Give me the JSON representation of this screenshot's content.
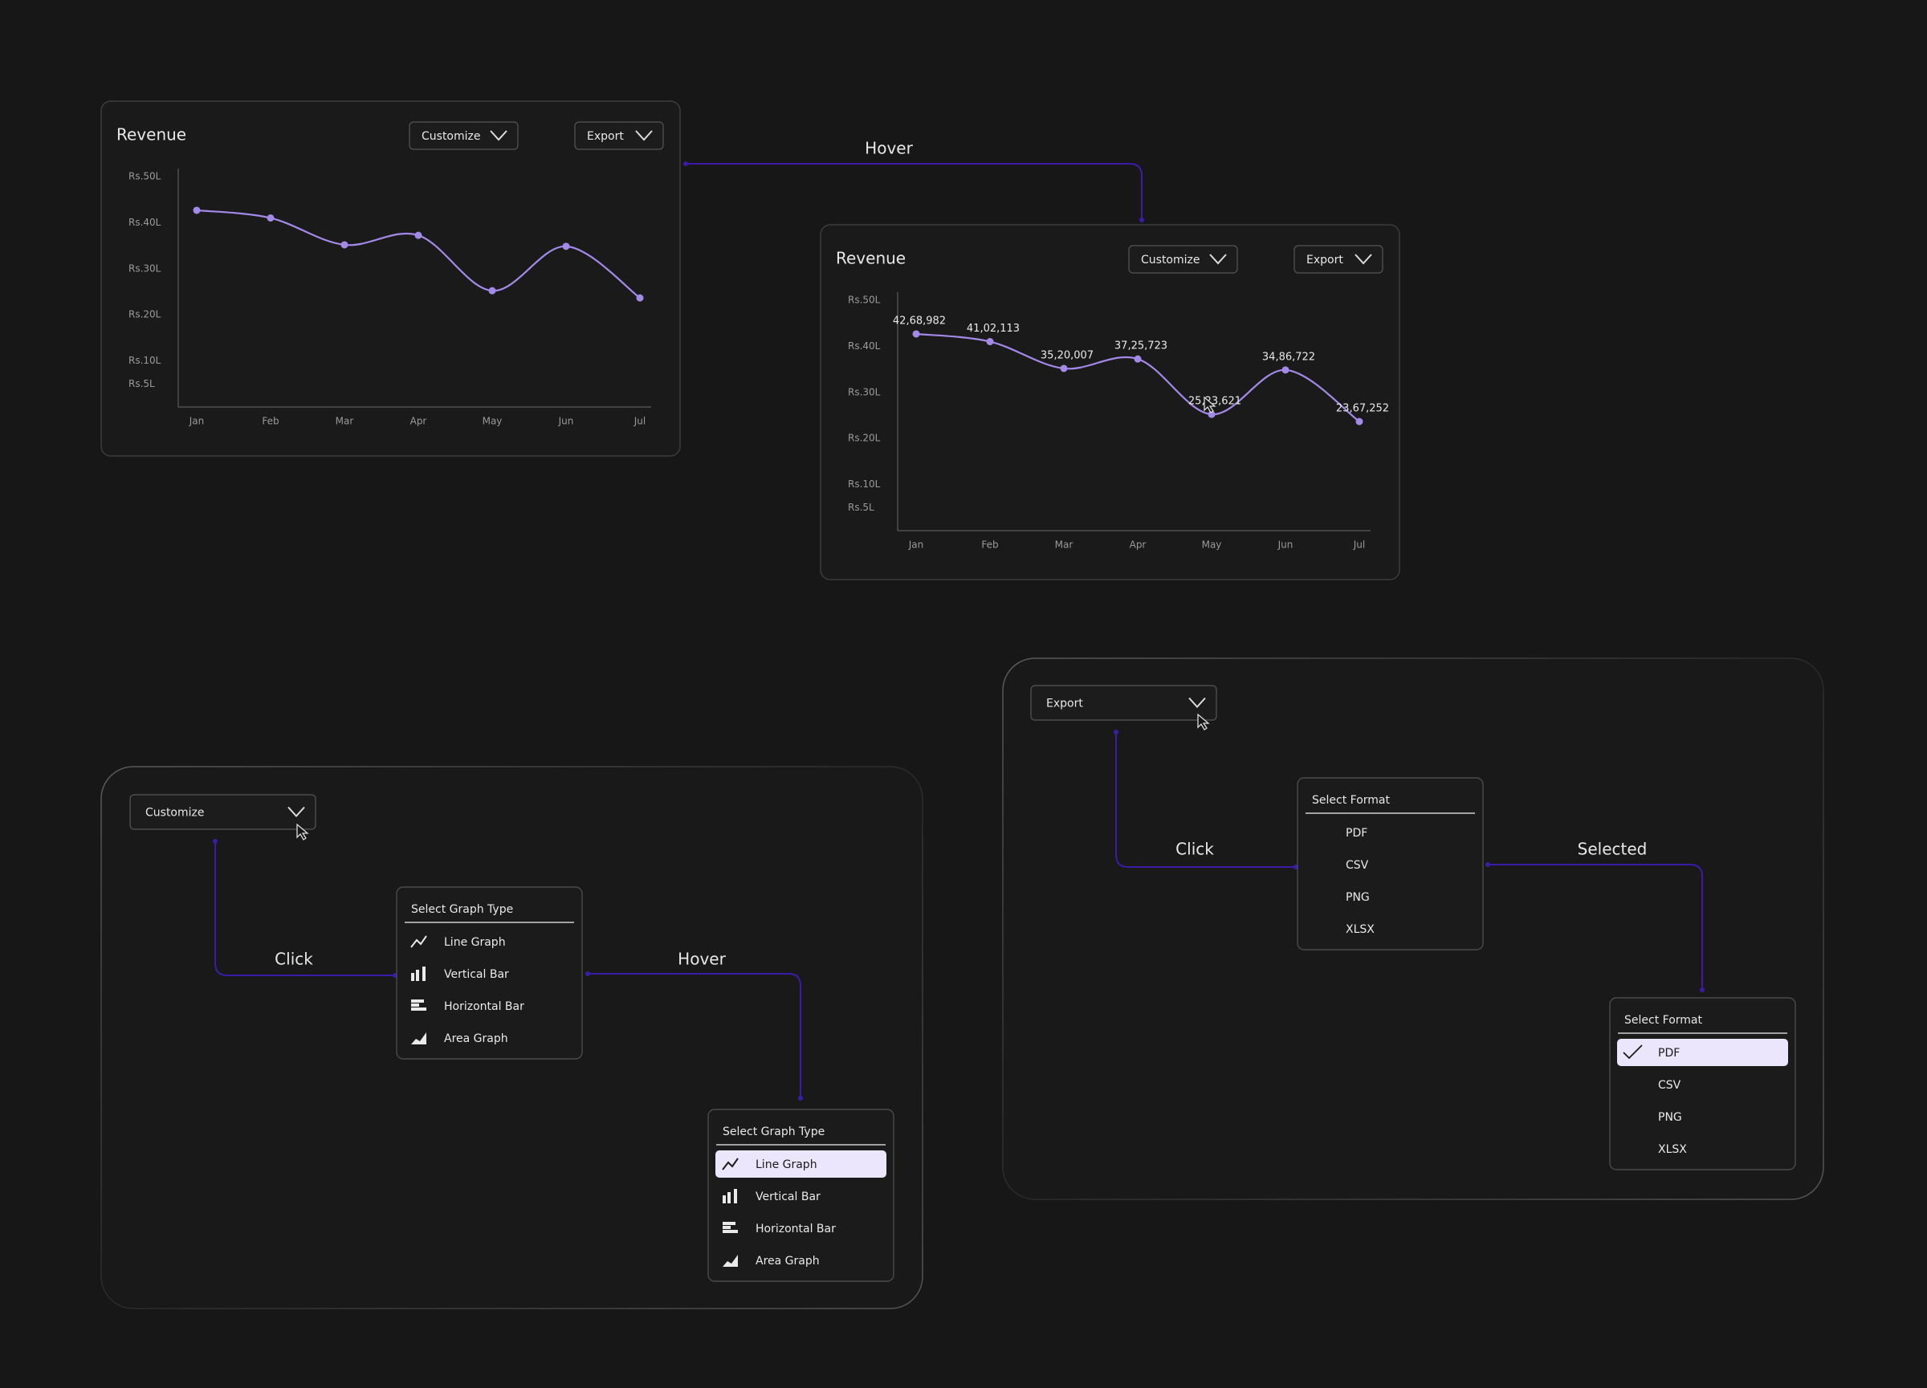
{
  "chart_data": [
    {
      "type": "line",
      "title": "Revenue",
      "color": "#a48ae8",
      "categories": [
        "Jan",
        "Feb",
        "Mar",
        "Apr",
        "May",
        "Jun",
        "Jul"
      ],
      "values": [
        4268982,
        4102113,
        3520007,
        3725723,
        2523621,
        3486722,
        2367252
      ],
      "ylim": [
        0,
        5000000
      ],
      "yticks": [
        {
          "value": 500000,
          "label": "Rs.5L"
        },
        {
          "value": 1000000,
          "label": "Rs.10L"
        },
        {
          "value": 2000000,
          "label": "Rs.20L"
        },
        {
          "value": 3000000,
          "label": "Rs.30L"
        },
        {
          "value": 4000000,
          "label": "Rs.40L"
        },
        {
          "value": 5000000,
          "label": "Rs.50L"
        }
      ]
    },
    {
      "type": "line",
      "title": "Revenue",
      "color": "#a48ae8",
      "categories": [
        "Jan",
        "Feb",
        "Mar",
        "Apr",
        "May",
        "Jun",
        "Jul"
      ],
      "values": [
        4268982,
        4102113,
        3520007,
        3725723,
        2523621,
        3486722,
        2367252
      ],
      "value_labels": [
        "42,68,982",
        "41,02,113",
        "35,20,007",
        "37,25,723",
        "25,23,621",
        "34,86,722",
        "23,67,252"
      ],
      "ylim": [
        0,
        5000000
      ],
      "yticks": [
        {
          "value": 500000,
          "label": "Rs.5L"
        },
        {
          "value": 1000000,
          "label": "Rs.10L"
        },
        {
          "value": 2000000,
          "label": "Rs.20L"
        },
        {
          "value": 3000000,
          "label": "Rs.30L"
        },
        {
          "value": 4000000,
          "label": "Rs.40L"
        },
        {
          "value": 5000000,
          "label": "Rs.50L"
        }
      ]
    }
  ],
  "hover_label": "Hover",
  "customize_flow": {
    "button": "Customize",
    "click": "Click",
    "hover": "Hover",
    "menu": {
      "title": "Select Graph Type",
      "items": [
        "Line Graph",
        "Vertical Bar",
        "Horizontal Bar",
        "Area Graph"
      ]
    },
    "highlighted": 0
  },
  "export_flow": {
    "button": "Export",
    "click": "Click",
    "selected_label": "Selected",
    "menu": {
      "title": "Select Format",
      "items": [
        "PDF",
        "CSV",
        "PNG",
        "XLSX"
      ]
    },
    "selected": 0
  }
}
